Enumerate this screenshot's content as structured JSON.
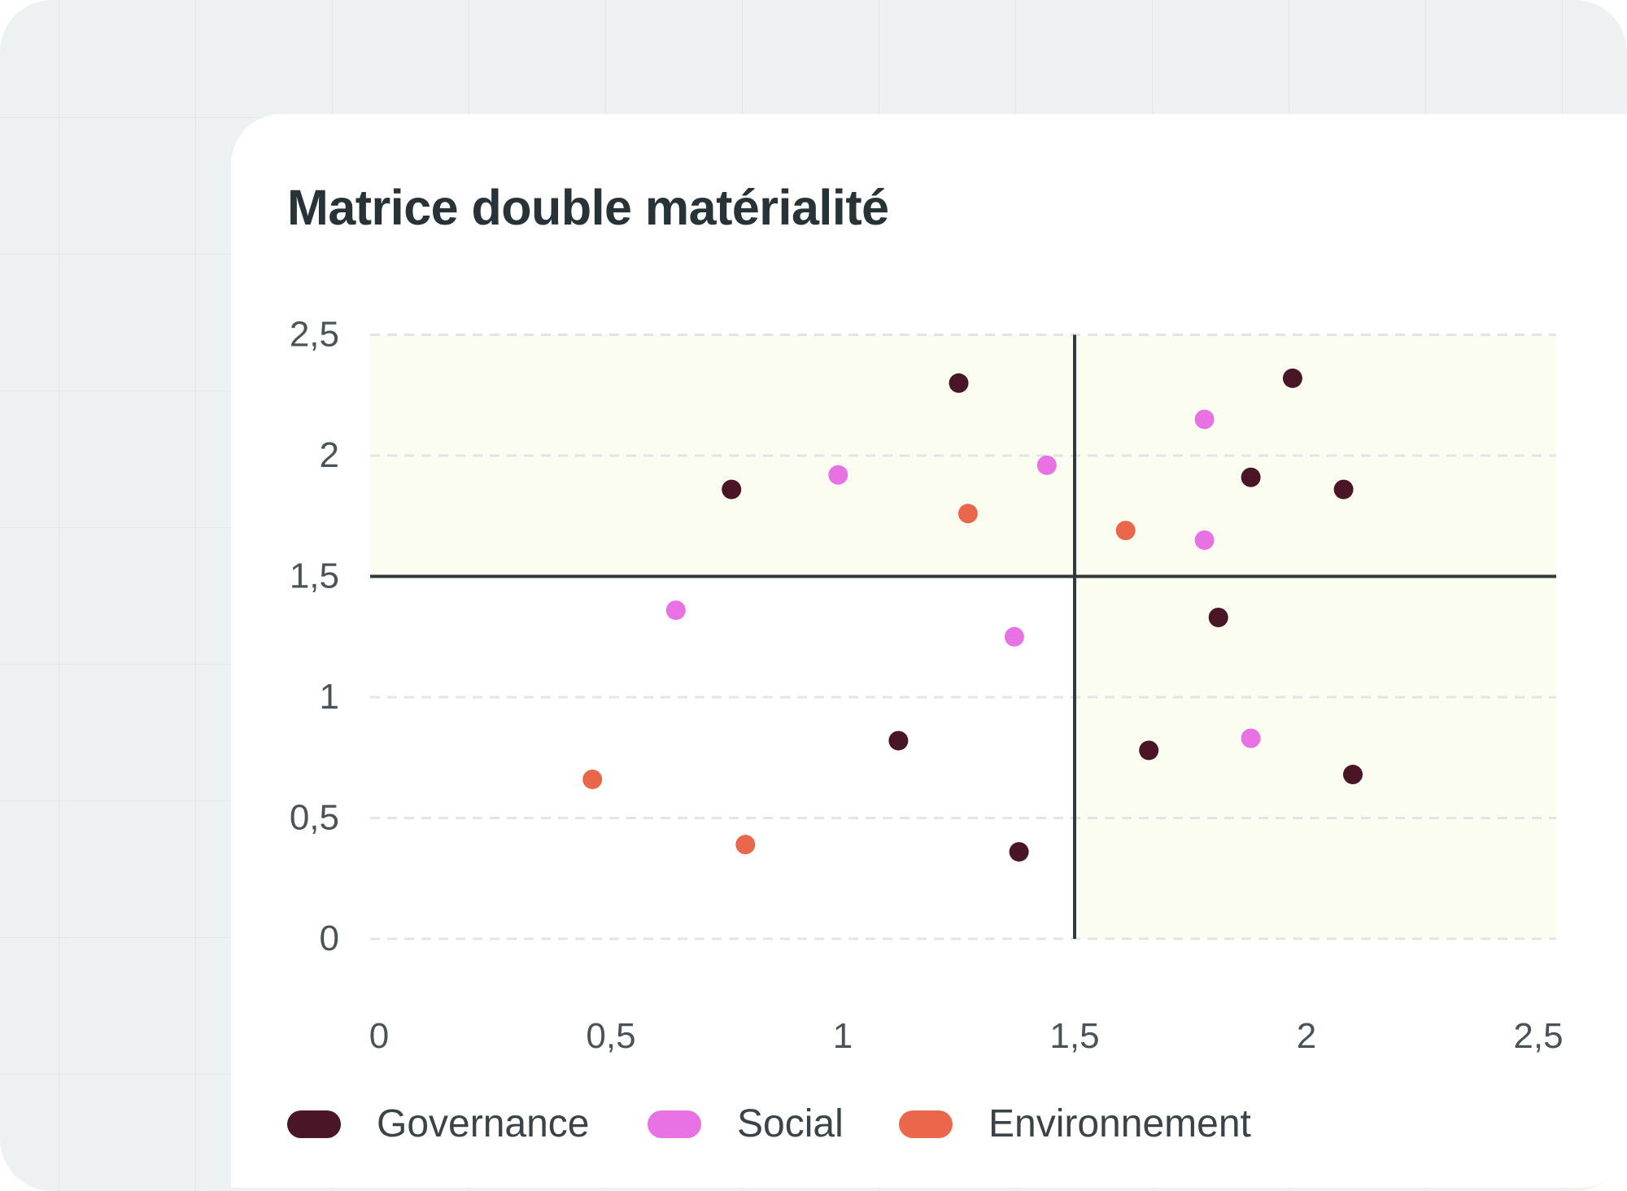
{
  "chart_data": {
    "type": "scatter",
    "title": "Matrice double matérialité",
    "xlim": [
      0,
      2.5
    ],
    "ylim": [
      0,
      2.5
    ],
    "x_ticks": [
      "0",
      "0,5",
      "1",
      "1,5",
      "2",
      "2,5"
    ],
    "y_ticks": [
      "0",
      "0,5",
      "1",
      "1,5",
      "2",
      "2,5"
    ],
    "grid": "horizontal dashed",
    "threshold": {
      "x": 1.5,
      "y": 1.5
    },
    "legend_position": "bottom-left",
    "series": [
      {
        "name": "Governance",
        "color": "#4a1526",
        "points": [
          [
            1.25,
            2.3
          ],
          [
            0.76,
            1.86
          ],
          [
            1.97,
            2.32
          ],
          [
            1.88,
            1.91
          ],
          [
            2.08,
            1.86
          ],
          [
            1.81,
            1.33
          ],
          [
            1.12,
            0.82
          ],
          [
            1.66,
            0.78
          ],
          [
            2.1,
            0.68
          ],
          [
            1.38,
            0.36
          ]
        ]
      },
      {
        "name": "Social",
        "color": "#e872e4",
        "points": [
          [
            0.99,
            1.92
          ],
          [
            1.44,
            1.96
          ],
          [
            1.78,
            2.15
          ],
          [
            1.78,
            1.65
          ],
          [
            0.64,
            1.36
          ],
          [
            1.37,
            1.25
          ],
          [
            1.88,
            0.83
          ]
        ]
      },
      {
        "name": "Environnement",
        "color": "#ea674b",
        "points": [
          [
            1.27,
            1.76
          ],
          [
            1.61,
            1.69
          ],
          [
            0.46,
            0.66
          ],
          [
            0.79,
            0.39
          ]
        ]
      }
    ]
  }
}
